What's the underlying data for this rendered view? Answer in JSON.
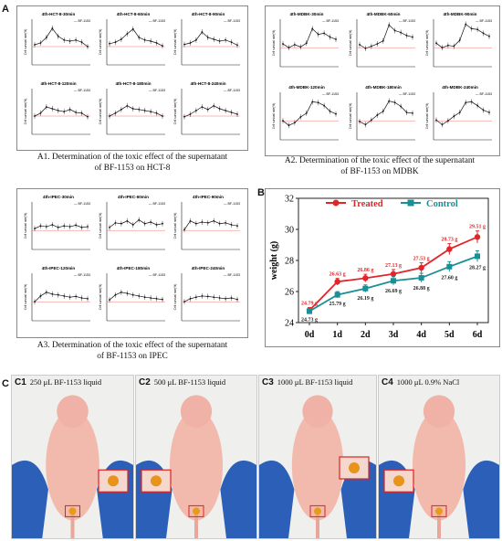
{
  "panels": {
    "A1": {
      "caption_line1": "A1. Determination of the toxic effect of the supernatant",
      "caption_line2": "of BF-1153 on HCT-8",
      "legend": "BF-1153",
      "ylabel": "Cell survival rate(%)",
      "charts": [
        {
          "title": "4th-HCT-8-30min",
          "values": [
            105,
            110,
            125,
            150,
            128,
            118,
            115,
            118,
            112,
            100
          ]
        },
        {
          "title": "4th-HCT-8-60min",
          "values": [
            108,
            112,
            120,
            135,
            148,
            125,
            118,
            115,
            110,
            102
          ]
        },
        {
          "title": "4th-HCT-8-90min",
          "values": [
            106,
            110,
            118,
            140,
            125,
            120,
            115,
            118,
            112,
            104
          ]
        },
        {
          "title": "4th-HCT-8-120min",
          "values": [
            100,
            108,
            125,
            120,
            115,
            112,
            118,
            110,
            108,
            98
          ]
        },
        {
          "title": "4th-HCT-8-180min",
          "values": [
            100,
            108,
            118,
            128,
            120,
            118,
            115,
            112,
            108,
            100
          ]
        },
        {
          "title": "4th-HCT-8-240min",
          "values": [
            98,
            105,
            115,
            125,
            118,
            128,
            120,
            115,
            110,
            105
          ]
        }
      ]
    },
    "A2": {
      "caption_line1": "A2. Determination of the toxic effect of the supernatant",
      "caption_line2": "of BF-1153 on MDBK",
      "legend": "BF-1153",
      "ylabel": "Cell survival rate(%)",
      "charts": [
        {
          "title": "4th-MDBK-30min",
          "values": [
            110,
            100,
            108,
            102,
            112,
            150,
            135,
            138,
            128,
            122
          ]
        },
        {
          "title": "4th-MDBK-60min",
          "values": [
            108,
            98,
            104,
            110,
            118,
            160,
            145,
            140,
            132,
            128
          ]
        },
        {
          "title": "4th-MDBK-90min",
          "values": [
            112,
            100,
            106,
            104,
            120,
            162,
            150,
            148,
            138,
            130
          ]
        },
        {
          "title": "4th-MDBK-120min",
          "values": [
            100,
            88,
            95,
            110,
            120,
            150,
            148,
            140,
            125,
            118
          ]
        },
        {
          "title": "4th-MDBK-180min",
          "values": [
            98,
            90,
            102,
            115,
            125,
            152,
            148,
            138,
            122,
            120
          ]
        },
        {
          "title": "4th-MDBK-240min",
          "values": [
            102,
            90,
            100,
            112,
            122,
            148,
            150,
            140,
            128,
            122
          ]
        }
      ]
    },
    "A3": {
      "caption_line1": "A3. Determination of the toxic effect of the supernatant",
      "caption_line2": "of BF-1153 on IPEC",
      "legend": "BF-1153",
      "ylabel": "Cell survival rate(%)",
      "charts": [
        {
          "title": "4th-IPEC-30min",
          "values": [
            105,
            112,
            110,
            115,
            108,
            112,
            110,
            114,
            108,
            110
          ]
        },
        {
          "title": "4th-IPEC-60min",
          "values": [
            108,
            120,
            118,
            125,
            115,
            128,
            118,
            122,
            115,
            118
          ]
        },
        {
          "title": "4th-IPEC-90min",
          "values": [
            102,
            125,
            118,
            122,
            120,
            125,
            118,
            120,
            115,
            112
          ]
        },
        {
          "title": "4th-IPEC-120min",
          "values": [
            100,
            115,
            125,
            120,
            118,
            115,
            112,
            114,
            110,
            108
          ]
        },
        {
          "title": "4th-IPEC-180min",
          "values": [
            105,
            118,
            125,
            122,
            118,
            115,
            112,
            110,
            108,
            106
          ]
        },
        {
          "title": "4th-IPEC-240min",
          "values": [
            100,
            108,
            112,
            115,
            114,
            112,
            110,
            108,
            110,
            106
          ]
        }
      ]
    },
    "B": {
      "letter": "B",
      "legend_treated": "Treated",
      "legend_control": "Control"
    },
    "C": {
      "letter": "C",
      "photos": [
        {
          "id": "C1",
          "label": "250 μL BF-1153 liquid"
        },
        {
          "id": "C2",
          "label": "500 μL BF-1153 liquid"
        },
        {
          "id": "C3",
          "label": "1000 μL BF-1153 liquid"
        },
        {
          "id": "C4",
          "label": "1000 μL 0.9% NaCl"
        }
      ]
    }
  },
  "chart_data": {
    "type": "line",
    "categories": [
      "0d",
      "1d",
      "2d",
      "3d",
      "4d",
      "5d",
      "6d"
    ],
    "ylabel": "weight (g)",
    "ylim": [
      24,
      32
    ],
    "yticks": [
      24,
      26,
      28,
      30,
      32
    ],
    "series": [
      {
        "name": "Treated",
        "color": "#e0262a",
        "values": [
          24.79,
          26.63,
          26.86,
          27.13,
          27.53,
          28.73,
          29.51
        ],
        "labels": [
          "24.79 g",
          "26.63 g",
          "26.86 g",
          "27.13 g",
          "27.53 g",
          "28.73 g",
          "29.51 g"
        ]
      },
      {
        "name": "Control",
        "color": "#1a8f95",
        "values": [
          24.73,
          25.79,
          26.19,
          26.69,
          26.88,
          27.6,
          28.27
        ],
        "labels": [
          "24.73 g",
          "25.79 g",
          "26.19 g",
          "26.69 g",
          "26.88 g",
          "27.60 g",
          "28.27 g"
        ]
      }
    ]
  }
}
